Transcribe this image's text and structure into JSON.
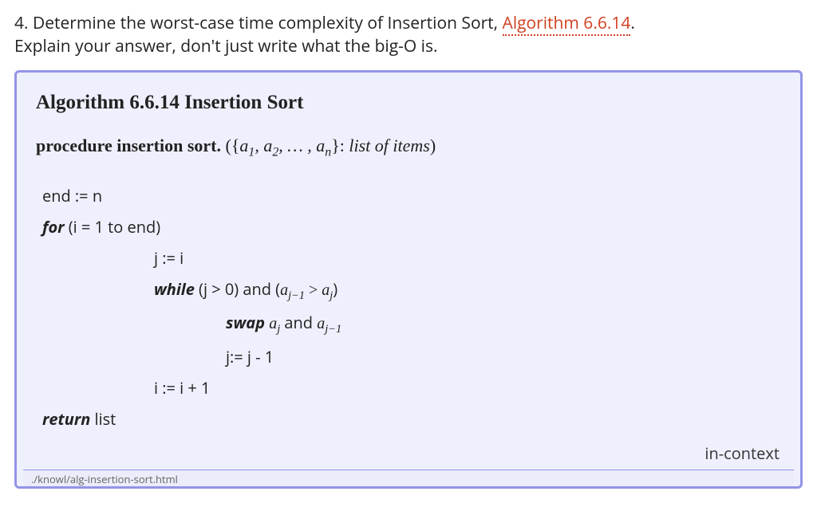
{
  "question": {
    "number": "4.",
    "text_part1": "Determine the worst-case time complexity of Insertion Sort, ",
    "link_text": "Algorithm 6.6.14",
    "period": ".",
    "text_part2": "Explain your answer, don't just write what the big-O is."
  },
  "algorithm": {
    "title": "Algorithm 6.6.14  Insertion Sort",
    "procedure_label": "procedure insertion sort.",
    "procedure_args_prefix": "  ({",
    "procedure_args_items": "a₁, a₂, … , aₙ",
    "procedure_args_suffix": "}: ",
    "procedure_args_desc": "list of items",
    "procedure_args_close": ")",
    "lines": {
      "l1": "end := n",
      "l2_kw": "for",
      "l2_rest": " (i = 1 to end)",
      "l3": "j := i",
      "l4_kw": "while",
      "l4_rest_a": " (j > 0) and (",
      "l4_rest_b": " > ",
      "l4_rest_c": ")",
      "l5_kw": "swap",
      "l5_rest_mid": " and ",
      "l6": "j:= j - 1",
      "l7": "i := i + 1",
      "l8_kw": "return",
      "l8_rest": " list"
    },
    "math": {
      "a": "a",
      "j": "j",
      "jm1": "j−1"
    },
    "in_context": "in-context",
    "path": "./knowl/alg-insertion-sort.html"
  },
  "colors": {
    "box_border": "#9394e8",
    "box_bg": "#eff0fd",
    "link_color": "#d04020",
    "text_color": "#222222"
  }
}
